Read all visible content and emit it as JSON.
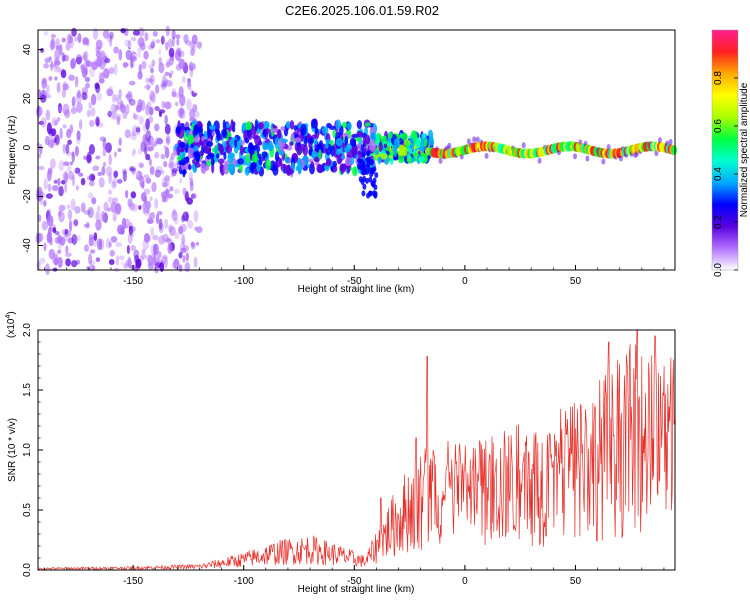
{
  "title": "C2E6.2025.106.01.59.R02",
  "chart_data": [
    {
      "type": "heatmap",
      "xlabel": "Height of straight line (km)",
      "ylabel": "Frequency (Hz)",
      "xlim": [
        -193,
        95
      ],
      "ylim": [
        -50,
        48
      ],
      "xticks": [
        -150,
        -100,
        -50,
        0,
        50
      ],
      "yticks": [
        -40,
        -20,
        0,
        20,
        40
      ],
      "colorbar": {
        "label": "Normalized spectral amplitude",
        "range": [
          0.0,
          1.0
        ],
        "ticks": [
          "0.0",
          "0.2",
          "0.4",
          "0.6",
          "0.8"
        ],
        "colors": [
          "#ffffff",
          "#b070ff",
          "#5a00e0",
          "#0000ff",
          "#00aaff",
          "#00ffd0",
          "#00ff40",
          "#aaff00",
          "#ffff00",
          "#ffaa00",
          "#ff2020",
          "#ff2090"
        ]
      },
      "regions": [
        {
          "x_range": [
            -193,
            -120
          ],
          "freq_spread": [
            -50,
            48
          ],
          "amplitude": 0.1
        },
        {
          "x_range": [
            -130,
            -40
          ],
          "freq_spread": [
            -10,
            10
          ],
          "amplitude": 0.25
        },
        {
          "x_range": [
            -40,
            -15
          ],
          "freq_spread": [
            -5,
            5
          ],
          "amplitude": 0.4
        },
        {
          "x_range": [
            -15,
            95
          ],
          "center_freq": -1,
          "amplitude": 0.85
        }
      ]
    },
    {
      "type": "line",
      "xlabel": "Height of straight line (km)",
      "ylabel": "SNR (10 * v/v)",
      "yscale_label": "(x10",
      "yscale_exponent": "4",
      "xlim": [
        -193,
        95
      ],
      "ylim": [
        0.0,
        2.0
      ],
      "xticks": [
        -150,
        -100,
        -50,
        0,
        50
      ],
      "yticks": [
        "0.0",
        "0.5",
        "1.0",
        "1.5",
        "2.0"
      ],
      "color": "#e8302a",
      "series": [
        {
          "envelope": [
            {
              "x": -193,
              "y": 0.02
            },
            {
              "x": -150,
              "y": 0.03
            },
            {
              "x": -120,
              "y": 0.05
            },
            {
              "x": -110,
              "y": 0.1
            },
            {
              "x": -100,
              "y": 0.15
            },
            {
              "x": -85,
              "y": 0.25
            },
            {
              "x": -70,
              "y": 0.3
            },
            {
              "x": -55,
              "y": 0.2
            },
            {
              "x": -45,
              "y": 0.12
            },
            {
              "x": -35,
              "y": 0.55
            },
            {
              "x": -25,
              "y": 0.9
            },
            {
              "x": -15,
              "y": 1.1
            },
            {
              "x": 0,
              "y": 1.05
            },
            {
              "x": 20,
              "y": 1.2
            },
            {
              "x": 40,
              "y": 1.3
            },
            {
              "x": 60,
              "y": 1.6
            },
            {
              "x": 75,
              "y": 1.9
            },
            {
              "x": 95,
              "y": 1.8
            }
          ],
          "spikes": [
            {
              "x": -17,
              "y": 1.78
            },
            {
              "x": -22,
              "y": 1.1
            },
            {
              "x": -38,
              "y": 0.6
            },
            {
              "x": 65,
              "y": 1.9
            },
            {
              "x": 78,
              "y": 2.0
            },
            {
              "x": 86,
              "y": 1.95
            }
          ]
        }
      ]
    }
  ]
}
